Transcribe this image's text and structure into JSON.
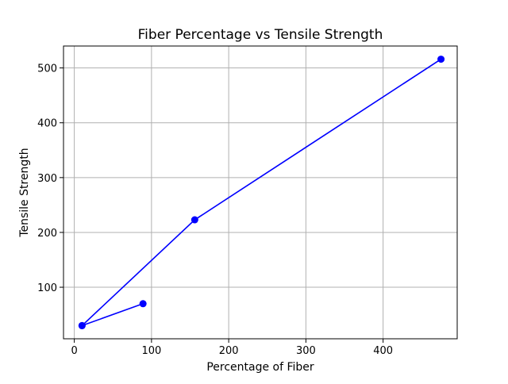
{
  "chart_data": {
    "type": "line",
    "title": "Fiber Percentage vs Tensile Strength",
    "xlabel": "Percentage of Fiber",
    "ylabel": "Tensile Strength",
    "xlim": [
      -14,
      496
    ],
    "ylim": [
      6,
      540
    ],
    "xticks": [
      0,
      100,
      200,
      300,
      400
    ],
    "yticks": [
      100,
      200,
      300,
      400,
      500
    ],
    "grid": true,
    "series": [
      {
        "color": "#0000ff",
        "marker": "circle",
        "points": [
          {
            "x": 10,
            "y": 30
          },
          {
            "x": 89,
            "y": 70
          },
          {
            "x": 10,
            "y": 30
          },
          {
            "x": 156,
            "y": 223
          },
          {
            "x": 475,
            "y": 516
          }
        ]
      }
    ]
  }
}
